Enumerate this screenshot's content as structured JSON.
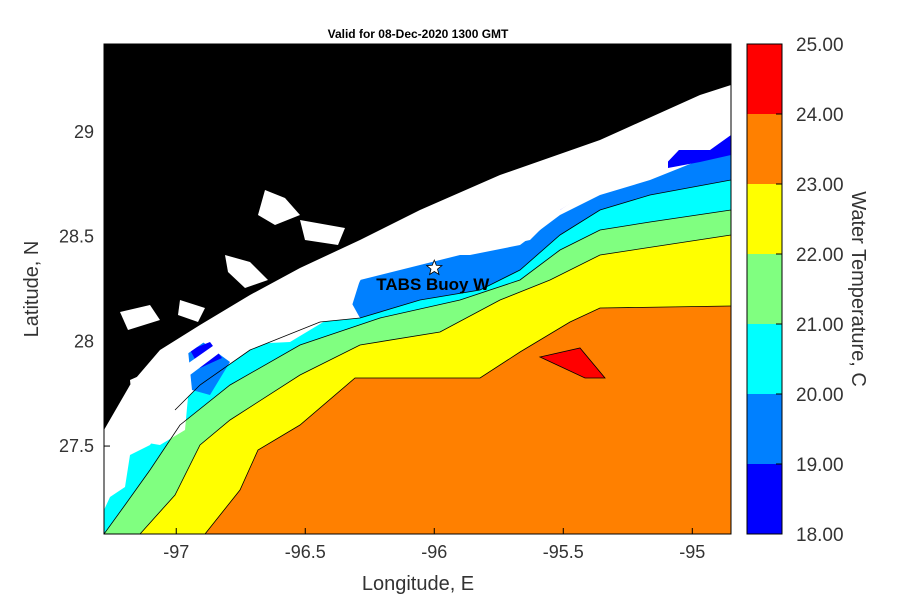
{
  "title": "Valid for 08-Dec-2020 1300 GMT",
  "x_axis": {
    "label": "Longitude, E",
    "ticks": [
      {
        "value": -97,
        "label": "-97"
      },
      {
        "value": -96.5,
        "label": "-96.5"
      },
      {
        "value": -96,
        "label": "-96"
      },
      {
        "value": -95.5,
        "label": "-95.5"
      },
      {
        "value": -95,
        "label": "-95"
      }
    ],
    "range": [
      -97.28,
      -94.85
    ]
  },
  "y_axis": {
    "label": "Latitude, N",
    "ticks": [
      {
        "value": 29,
        "label": "29"
      },
      {
        "value": 28.5,
        "label": "28.5"
      },
      {
        "value": 28,
        "label": "28"
      },
      {
        "value": 27.5,
        "label": "27.5"
      }
    ],
    "range": [
      27.08,
      29.42
    ]
  },
  "colorbar": {
    "label": "Water Temperature, C",
    "tick_labels": [
      "25.00",
      "24.00",
      "23.00",
      "22.00",
      "21.00",
      "20.00",
      "19.00",
      "18.00"
    ],
    "bands": [
      {
        "from": 24,
        "to": 25,
        "color": "#ff0000"
      },
      {
        "from": 23,
        "to": 24,
        "color": "#ff8000"
      },
      {
        "from": 22,
        "to": 23,
        "color": "#ffff00"
      },
      {
        "from": 21,
        "to": 22,
        "color": "#80ff80"
      },
      {
        "from": 20,
        "to": 21,
        "color": "#00ffff"
      },
      {
        "from": 19,
        "to": 20,
        "color": "#0080ff"
      },
      {
        "from": 18,
        "to": 19,
        "color": "#0000ff"
      }
    ]
  },
  "marker": {
    "label": "TABS Buoy W",
    "lon": -96.0,
    "lat": 28.35,
    "symbol": "star"
  },
  "colors": {
    "land": "#000000",
    "no_data": "#ffffff",
    "contour_line": "#000000"
  }
}
